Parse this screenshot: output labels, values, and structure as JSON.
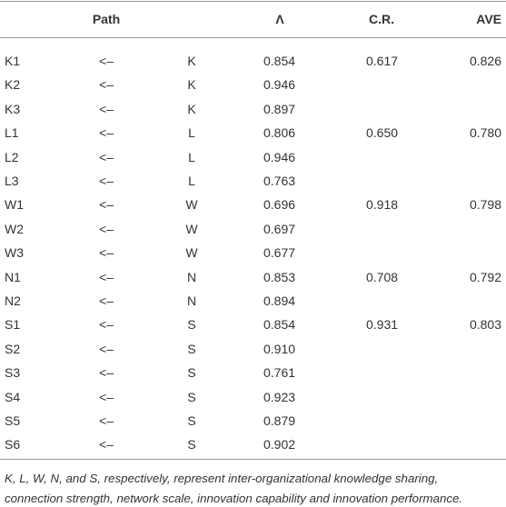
{
  "table": {
    "header": [
      "Path",
      "Λ",
      "C.R.",
      "AVE"
    ],
    "rows": [
      {
        "item": "K1",
        "arrow": "<–",
        "factor": "K",
        "lambda": "0.854",
        "cr": "0.617",
        "ave": "0.826"
      },
      {
        "item": "K2",
        "arrow": "<–",
        "factor": "K",
        "lambda": "0.946"
      },
      {
        "item": "K3",
        "arrow": "<–",
        "factor": "K",
        "lambda": "0.897"
      },
      {
        "item": "L1",
        "arrow": "<–",
        "factor": "L",
        "lambda": "0.806",
        "cr": "0.650",
        "ave": "0.780"
      },
      {
        "item": "L2",
        "arrow": "<–",
        "factor": "L",
        "lambda": "0.946"
      },
      {
        "item": "L3",
        "arrow": "<–",
        "factor": "L",
        "lambda": "0.763"
      },
      {
        "item": "W1",
        "arrow": "<–",
        "factor": "W",
        "lambda": "0.696",
        "cr": "0.918",
        "ave": "0.798"
      },
      {
        "item": "W2",
        "arrow": "<–",
        "factor": "W",
        "lambda": "0.697"
      },
      {
        "item": "W3",
        "arrow": "<–",
        "factor": "W",
        "lambda": "0.677"
      },
      {
        "item": "N1",
        "arrow": "<–",
        "factor": "N",
        "lambda": "0.853",
        "cr": "0.708",
        "ave": "0.792"
      },
      {
        "item": "N2",
        "arrow": "<–",
        "factor": "N",
        "lambda": "0.894"
      },
      {
        "item": "S1",
        "arrow": "<–",
        "factor": "S",
        "lambda": "0.854",
        "cr": "0.931",
        "ave": "0.803"
      },
      {
        "item": "S2",
        "arrow": "<–",
        "factor": "S",
        "lambda": "0.910"
      },
      {
        "item": "S3",
        "arrow": "<–",
        "factor": "S",
        "lambda": "0.761"
      },
      {
        "item": "S4",
        "arrow": "<–",
        "factor": "S",
        "lambda": "0.923"
      },
      {
        "item": "S5",
        "arrow": "<–",
        "factor": "S",
        "lambda": "0.879"
      },
      {
        "item": "S6",
        "arrow": "<–",
        "factor": "S",
        "lambda": "0.902"
      }
    ],
    "footnote": [
      "K, L, W, N, and S, respectively, represent inter-organizational knowledge sharing,",
      "connection strength, network scale, innovation capability and innovation performance."
    ]
  }
}
